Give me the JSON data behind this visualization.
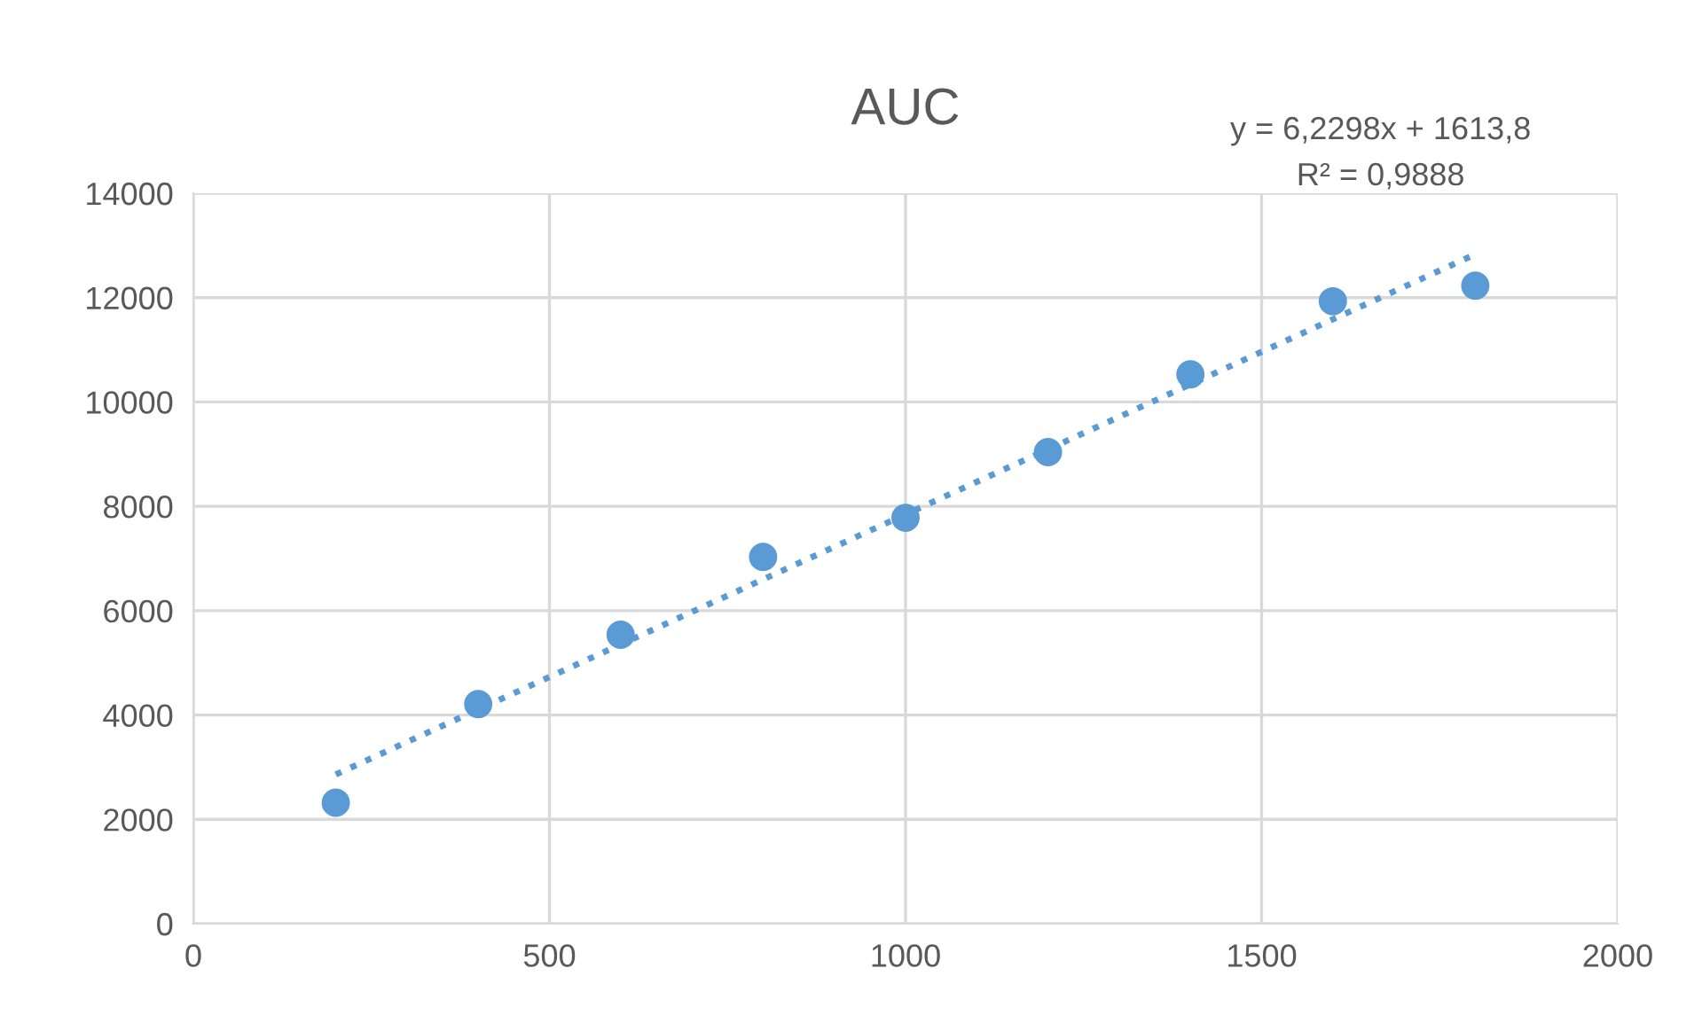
{
  "chart_data": {
    "type": "scatter",
    "title": "AUC",
    "series": [
      {
        "color": "#5b9bd5",
        "marker": "circle",
        "x": [
          200,
          400,
          600,
          800,
          1000,
          1200,
          1400,
          1600,
          1800
        ],
        "values": [
          2320,
          4210,
          5540,
          7030,
          7780,
          9040,
          10530,
          11930,
          12230
        ]
      },
      {
        "type": "line",
        "color": "#5b9bd5",
        "line_style": "dotted",
        "marker": "none",
        "x": [
          200,
          1800
        ],
        "values": [
          2860,
          12830
        ]
      }
    ],
    "annotations": [
      "y = 6,2298x + 1613,8",
      "R² = 0,9888"
    ],
    "xlim": [
      0,
      2000
    ],
    "xticks": [
      0,
      500,
      1000,
      1500,
      2000
    ],
    "ylim": [
      0,
      14000
    ],
    "yticks": [
      0,
      2000,
      4000,
      6000,
      8000,
      10000,
      12000,
      14000
    ],
    "grid": true,
    "legend": false
  }
}
